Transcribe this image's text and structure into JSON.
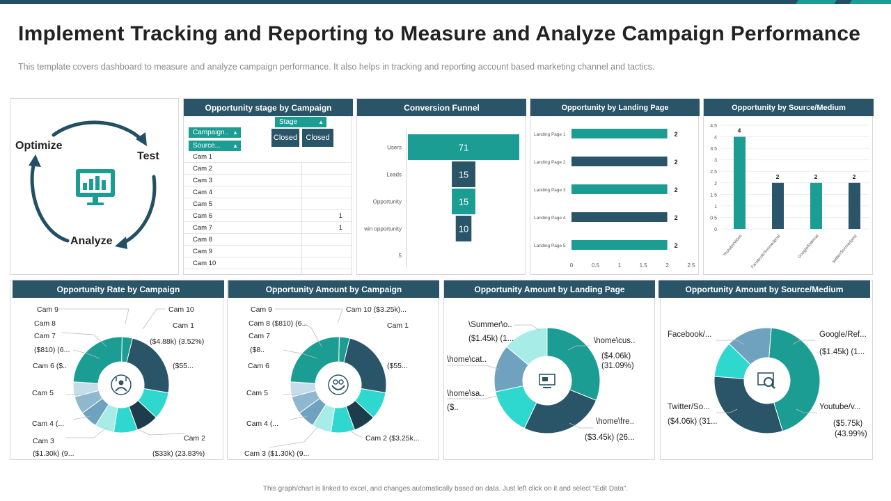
{
  "page": {
    "title": "Implement Tracking and Reporting to Measure and Analyze Campaign Performance",
    "subtitle": "This template covers dashboard to measure and analyze campaign performance.  It also helps in tracking and reporting  account based marketing channel and tactics.",
    "footer": "This graph/chart is linked to excel, and changes automatically based on data. Just left click on it and select “Edit Data”."
  },
  "colors": {
    "navy": "#2a5467",
    "dark": "#234f63",
    "teal": "#1b9d93",
    "aqua": "#2ed8cf",
    "light_aqua": "#a8ece8",
    "steel": "#6fa2bf",
    "pale": "#c5dde8"
  },
  "cycle": {
    "optimize": "Optimize",
    "test": "Test",
    "analyze": "Analyze",
    "icon": "monitor-chart-icon"
  },
  "stage_table": {
    "header": "Opportunity  stage by Campaign",
    "stage_label": "Stage",
    "campaign_label": "Campaign..",
    "source_label": "Source...",
    "closed_1": "Closed",
    "closed_2": "Closed",
    "rows": [
      {
        "name": "Cam 1",
        "value": ""
      },
      {
        "name": "Cam 2",
        "value": ""
      },
      {
        "name": "Cam 3",
        "value": ""
      },
      {
        "name": "Cam 4",
        "value": ""
      },
      {
        "name": "Cam 5",
        "value": ""
      },
      {
        "name": "Cam 6",
        "value": "1"
      },
      {
        "name": "Cam 7",
        "value": "1"
      },
      {
        "name": "Cam 8",
        "value": ""
      },
      {
        "name": "Cam 9",
        "value": ""
      },
      {
        "name": "Cam 10",
        "value": ""
      }
    ]
  },
  "chart_data": [
    {
      "type": "bar",
      "orientation": "funnel",
      "title": "Conversion Funnel",
      "categories": [
        "Users",
        "Leads",
        "Opportunity",
        "win opportunity"
      ],
      "values": [
        71,
        15,
        15,
        10
      ],
      "axis_bottom_label": "5"
    },
    {
      "type": "bar",
      "orientation": "horizontal",
      "title": "Opportunity by Landing Page",
      "categories": [
        "Landing Page  1",
        "Landing Page  2",
        "Landing Page  3",
        "Landing Page  4",
        "Landing Page  5"
      ],
      "values": [
        2,
        2,
        2,
        2,
        2
      ],
      "xlim": [
        0,
        2.5
      ],
      "xticks": [
        "0",
        "0.5",
        "1",
        "1.5",
        "2",
        "2.5"
      ]
    },
    {
      "type": "bar",
      "title": "Opportunity by Source/Medium",
      "categories": [
        "Youtube/Video",
        "Facebook/Socmedpost",
        "Google/Referral",
        "twitter/Socmedpost"
      ],
      "values": [
        4,
        2,
        2,
        2
      ],
      "ylim": [
        0,
        4.5
      ],
      "yticks": [
        "0",
        "0.5",
        "1",
        "1.5",
        "2",
        "2.5",
        "3",
        "3.5",
        "4",
        "4.5"
      ]
    },
    {
      "type": "pie",
      "title": "Opportunity  Rate by Campaign",
      "series": [
        {
          "name": "Cam 1",
          "value": 3.52
        },
        {
          "name": "Cam 2",
          "value": 23.83
        },
        {
          "name": "Cam 3",
          "value": 9.3
        },
        {
          "name": "Cam 4",
          "value": 7.5
        },
        {
          "name": "Cam 5",
          "value": 8.0
        },
        {
          "name": "Cam 6",
          "value": 6.5
        },
        {
          "name": "Cam 7",
          "value": 6.0
        },
        {
          "name": "Cam 8",
          "value": 6.0
        },
        {
          "name": "Cam 9",
          "value": 5.0
        },
        {
          "name": "Cam 10",
          "value": 24.35
        }
      ],
      "labels": {
        "cam9": "Cam 9",
        "cam10": "Cam 10",
        "cam8": "Cam 8",
        "cam1": "Cam 1",
        "cam7": "Cam 7",
        "cam1_value": "($4.88k) (3.52%)",
        "cam7_value": "($810) (6...",
        "cam6": "Cam 6 ($..",
        "cam10_value": "($55...",
        "cam5": "Cam 5",
        "cam4": "Cam 4  (...",
        "cam3": "Cam 3",
        "cam2": "Cam 2",
        "cam3_value": "($1.30k) (9...",
        "cam2_value": "($33k) (23.83%)"
      }
    },
    {
      "type": "pie",
      "title": "Opportunity  Amount by Campaign",
      "series": [
        {
          "name": "Cam 1",
          "value": 3.52
        },
        {
          "name": "Cam 2",
          "value": 23.83
        },
        {
          "name": "Cam 3",
          "value": 9.3
        },
        {
          "name": "Cam 4",
          "value": 7.5
        },
        {
          "name": "Cam 5",
          "value": 8.0
        },
        {
          "name": "Cam 6",
          "value": 6.5
        },
        {
          "name": "Cam 7",
          "value": 6.0
        },
        {
          "name": "Cam 8",
          "value": 6.0
        },
        {
          "name": "Cam 9",
          "value": 5.0
        },
        {
          "name": "Cam 10",
          "value": 24.35
        }
      ],
      "labels": {
        "cam9": "Cam 9",
        "cam10": "Cam 10 ($3.25k)...",
        "cam8": "Cam 8  ($810) (6...",
        "cam1": "Cam 1",
        "cam7": "Cam 7",
        "cam7_value": "($8..",
        "cam6": "Cam 6",
        "cam10_value": "($55...",
        "cam5": "Cam 5",
        "cam4": "Cam 4  (...",
        "cam2": "Cam 2 ($3.25k...",
        "cam3": "Cam 3  ($1.30k) (9..."
      }
    },
    {
      "type": "pie",
      "title": "Opportunity  Amount by Landing Page",
      "series": [
        {
          "name": "\\home\\cus..",
          "value": 31.09
        },
        {
          "name": "\\home\\fre..",
          "value": 26.0
        },
        {
          "name": "\\home\\sa..",
          "value": 14.5
        },
        {
          "name": "\\home\\cat..",
          "value": 14.5
        },
        {
          "name": "\\Summer\\o..",
          "value": 13.91
        }
      ],
      "labels": {
        "summer": "\\Summer\\o..",
        "summer_value": "($1.45k) (1...",
        "cus": "\\home\\cus..",
        "cus_value": "($4.06k)",
        "cus_pct": "(31.09%)",
        "cat": "\\home\\cat..",
        "sa": "\\home\\sa..",
        "sa_value": "($..",
        "fre": "\\home\\fre..",
        "fre_value": "($3.45k) (26..."
      }
    },
    {
      "type": "pie",
      "title": "Opportunity Amount by Source/Medium",
      "series": [
        {
          "name": "Youtube/v...",
          "value": 43.99
        },
        {
          "name": "Twitter/So...",
          "value": 31.0
        },
        {
          "name": "Facebook/...",
          "value": 11.0
        },
        {
          "name": "Google/Ref...",
          "value": 14.01
        }
      ],
      "labels": {
        "facebook": "Facebook/...",
        "google": "Google/Ref...",
        "google_value": "($1.45k) (1...",
        "twitter": "Twitter/So...",
        "twitter_value": "($4.06k) (31...",
        "youtube": "Youtube/v...",
        "youtube_value": "($5.75k)",
        "youtube_pct": "(43.99%)"
      }
    }
  ]
}
